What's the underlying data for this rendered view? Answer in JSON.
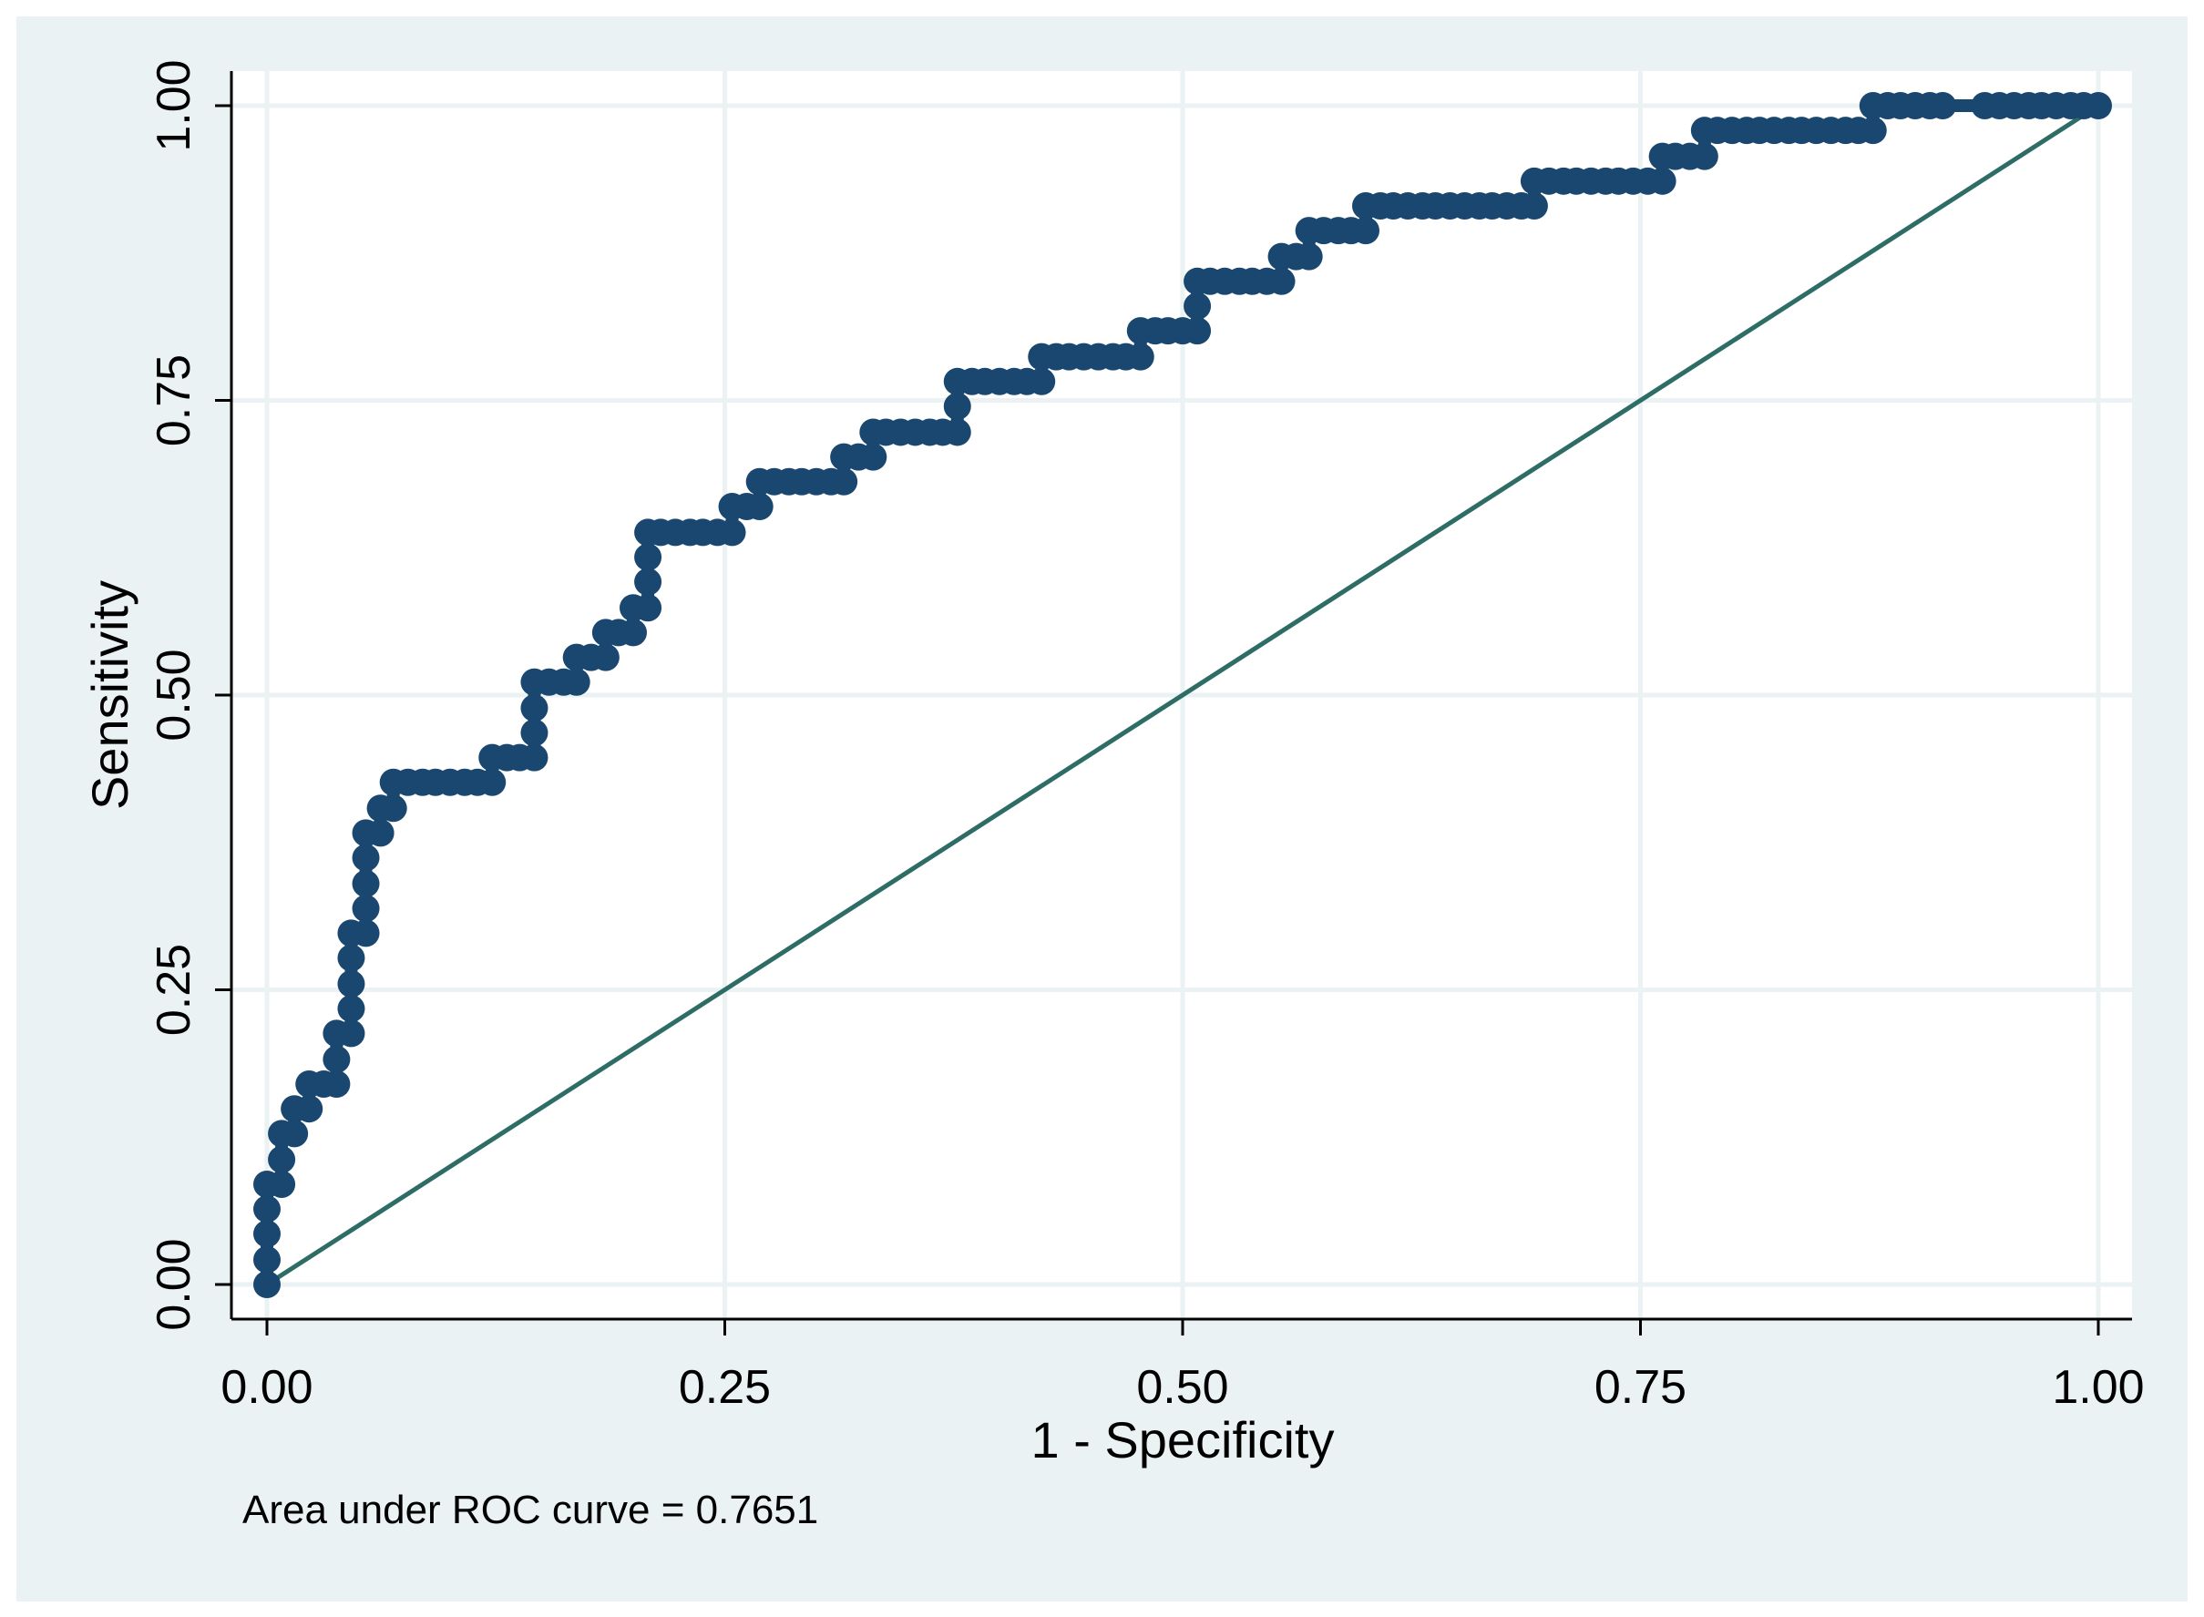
{
  "colors": {
    "outer_background": "#eaf2f3",
    "plot_background": "#ffffff",
    "grid": "#eaf2f3",
    "curve": "#1a476f",
    "reference_line": "#2d6d66",
    "axis": "#000000"
  },
  "chart_data": {
    "type": "line",
    "xlabel": "1 - Specificity",
    "ylabel": "Sensitivity",
    "xlim": [
      0,
      1
    ],
    "ylim": [
      0,
      1
    ],
    "x_ticks": [
      "0.00",
      "0.25",
      "0.50",
      "0.75",
      "1.00"
    ],
    "y_ticks": [
      "0.00",
      "0.25",
      "0.50",
      "0.75",
      "1.00"
    ],
    "grid": true,
    "legend": "none",
    "note": "Area under ROC curve = 0.7651",
    "series": [
      {
        "marker": "filled-circle",
        "points": [
          [
            0.0,
            0.0
          ],
          [
            0.0,
            0.021
          ],
          [
            0.0,
            0.043
          ],
          [
            0.0,
            0.064
          ],
          [
            0.0,
            0.085
          ],
          [
            0.008,
            0.085
          ],
          [
            0.008,
            0.106
          ],
          [
            0.008,
            0.128
          ],
          [
            0.015,
            0.128
          ],
          [
            0.015,
            0.149
          ],
          [
            0.023,
            0.149
          ],
          [
            0.023,
            0.17
          ],
          [
            0.031,
            0.17
          ],
          [
            0.038,
            0.17
          ],
          [
            0.038,
            0.191
          ],
          [
            0.038,
            0.213
          ],
          [
            0.046,
            0.213
          ],
          [
            0.046,
            0.234
          ],
          [
            0.046,
            0.255
          ],
          [
            0.046,
            0.277
          ],
          [
            0.046,
            0.298
          ],
          [
            0.054,
            0.298
          ],
          [
            0.054,
            0.319
          ],
          [
            0.054,
            0.34
          ],
          [
            0.054,
            0.362
          ],
          [
            0.054,
            0.383
          ],
          [
            0.062,
            0.383
          ],
          [
            0.062,
            0.404
          ],
          [
            0.069,
            0.404
          ],
          [
            0.069,
            0.426
          ],
          [
            0.077,
            0.426
          ],
          [
            0.085,
            0.426
          ],
          [
            0.092,
            0.426
          ],
          [
            0.1,
            0.426
          ],
          [
            0.108,
            0.426
          ],
          [
            0.115,
            0.426
          ],
          [
            0.123,
            0.426
          ],
          [
            0.123,
            0.447
          ],
          [
            0.131,
            0.447
          ],
          [
            0.138,
            0.447
          ],
          [
            0.146,
            0.447
          ],
          [
            0.146,
            0.468
          ],
          [
            0.146,
            0.489
          ],
          [
            0.146,
            0.511
          ],
          [
            0.154,
            0.511
          ],
          [
            0.162,
            0.511
          ],
          [
            0.169,
            0.511
          ],
          [
            0.169,
            0.532
          ],
          [
            0.177,
            0.532
          ],
          [
            0.185,
            0.532
          ],
          [
            0.185,
            0.553
          ],
          [
            0.192,
            0.553
          ],
          [
            0.2,
            0.553
          ],
          [
            0.2,
            0.574
          ],
          [
            0.208,
            0.574
          ],
          [
            0.208,
            0.596
          ],
          [
            0.208,
            0.617
          ],
          [
            0.208,
            0.638
          ],
          [
            0.215,
            0.638
          ],
          [
            0.223,
            0.638
          ],
          [
            0.231,
            0.638
          ],
          [
            0.238,
            0.638
          ],
          [
            0.246,
            0.638
          ],
          [
            0.254,
            0.638
          ],
          [
            0.254,
            0.66
          ],
          [
            0.262,
            0.66
          ],
          [
            0.269,
            0.66
          ],
          [
            0.269,
            0.681
          ],
          [
            0.277,
            0.681
          ],
          [
            0.285,
            0.681
          ],
          [
            0.292,
            0.681
          ],
          [
            0.3,
            0.681
          ],
          [
            0.308,
            0.681
          ],
          [
            0.315,
            0.681
          ],
          [
            0.315,
            0.702
          ],
          [
            0.323,
            0.702
          ],
          [
            0.331,
            0.702
          ],
          [
            0.331,
            0.723
          ],
          [
            0.338,
            0.723
          ],
          [
            0.346,
            0.723
          ],
          [
            0.354,
            0.723
          ],
          [
            0.362,
            0.723
          ],
          [
            0.369,
            0.723
          ],
          [
            0.377,
            0.723
          ],
          [
            0.377,
            0.745
          ],
          [
            0.377,
            0.766
          ],
          [
            0.385,
            0.766
          ],
          [
            0.392,
            0.766
          ],
          [
            0.4,
            0.766
          ],
          [
            0.408,
            0.766
          ],
          [
            0.415,
            0.766
          ],
          [
            0.423,
            0.766
          ],
          [
            0.423,
            0.787
          ],
          [
            0.431,
            0.787
          ],
          [
            0.438,
            0.787
          ],
          [
            0.446,
            0.787
          ],
          [
            0.454,
            0.787
          ],
          [
            0.462,
            0.787
          ],
          [
            0.469,
            0.787
          ],
          [
            0.477,
            0.787
          ],
          [
            0.477,
            0.809
          ],
          [
            0.485,
            0.809
          ],
          [
            0.492,
            0.809
          ],
          [
            0.5,
            0.809
          ],
          [
            0.508,
            0.809
          ],
          [
            0.508,
            0.83
          ],
          [
            0.508,
            0.851
          ],
          [
            0.515,
            0.851
          ],
          [
            0.523,
            0.851
          ],
          [
            0.531,
            0.851
          ],
          [
            0.538,
            0.851
          ],
          [
            0.546,
            0.851
          ],
          [
            0.554,
            0.851
          ],
          [
            0.554,
            0.872
          ],
          [
            0.562,
            0.872
          ],
          [
            0.569,
            0.872
          ],
          [
            0.569,
            0.894
          ],
          [
            0.577,
            0.894
          ],
          [
            0.585,
            0.894
          ],
          [
            0.592,
            0.894
          ],
          [
            0.6,
            0.894
          ],
          [
            0.6,
            0.915
          ],
          [
            0.608,
            0.915
          ],
          [
            0.615,
            0.915
          ],
          [
            0.623,
            0.915
          ],
          [
            0.631,
            0.915
          ],
          [
            0.638,
            0.915
          ],
          [
            0.646,
            0.915
          ],
          [
            0.654,
            0.915
          ],
          [
            0.662,
            0.915
          ],
          [
            0.669,
            0.915
          ],
          [
            0.677,
            0.915
          ],
          [
            0.685,
            0.915
          ],
          [
            0.692,
            0.915
          ],
          [
            0.692,
            0.936
          ],
          [
            0.7,
            0.936
          ],
          [
            0.708,
            0.936
          ],
          [
            0.715,
            0.936
          ],
          [
            0.723,
            0.936
          ],
          [
            0.731,
            0.936
          ],
          [
            0.738,
            0.936
          ],
          [
            0.746,
            0.936
          ],
          [
            0.754,
            0.936
          ],
          [
            0.762,
            0.936
          ],
          [
            0.762,
            0.957
          ],
          [
            0.769,
            0.957
          ],
          [
            0.777,
            0.957
          ],
          [
            0.785,
            0.957
          ],
          [
            0.785,
            0.979
          ],
          [
            0.792,
            0.979
          ],
          [
            0.8,
            0.979
          ],
          [
            0.808,
            0.979
          ],
          [
            0.815,
            0.979
          ],
          [
            0.823,
            0.979
          ],
          [
            0.831,
            0.979
          ],
          [
            0.838,
            0.979
          ],
          [
            0.846,
            0.979
          ],
          [
            0.854,
            0.979
          ],
          [
            0.862,
            0.979
          ],
          [
            0.869,
            0.979
          ],
          [
            0.877,
            0.979
          ],
          [
            0.877,
            1.0
          ],
          [
            0.885,
            1.0
          ],
          [
            0.892,
            1.0
          ],
          [
            0.9,
            1.0
          ],
          [
            0.908,
            1.0
          ],
          [
            0.915,
            1.0
          ],
          [
            0.938,
            1.0
          ],
          [
            0.946,
            1.0
          ],
          [
            0.954,
            1.0
          ],
          [
            0.962,
            1.0
          ],
          [
            0.969,
            1.0
          ],
          [
            0.977,
            1.0
          ],
          [
            0.985,
            1.0
          ],
          [
            0.992,
            1.0
          ],
          [
            1.0,
            1.0
          ]
        ]
      },
      {
        "marker": "none",
        "line": "reference",
        "points": [
          [
            0,
            0
          ],
          [
            1,
            1
          ]
        ]
      }
    ]
  }
}
